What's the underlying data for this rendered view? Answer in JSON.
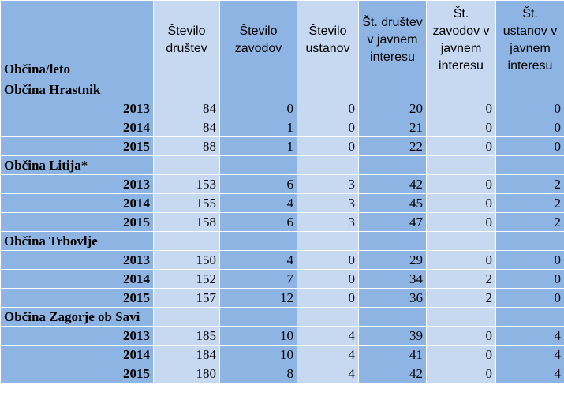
{
  "headers": [
    "Občina/leto",
    "Število društev",
    "Število zavodov",
    "Število ustanov",
    "Št. društev v javnem interesu",
    "Št. zavodov v javnem interesu",
    "Št. ustanov v javnem interesu"
  ],
  "groups": [
    {
      "name": "Občina Hrastnik",
      "rows": [
        {
          "year": "2013",
          "values": [
            "84",
            "0",
            "0",
            "20",
            "0",
            "0"
          ]
        },
        {
          "year": "2014",
          "values": [
            "84",
            "1",
            "0",
            "21",
            "0",
            "0"
          ]
        },
        {
          "year": "2015",
          "values": [
            "88",
            "1",
            "0",
            "22",
            "0",
            "0"
          ]
        }
      ]
    },
    {
      "name": "Občina Litija*",
      "rows": [
        {
          "year": "2013",
          "values": [
            "153",
            "6",
            "3",
            "42",
            "0",
            "2"
          ]
        },
        {
          "year": "2014",
          "values": [
            "155",
            "4",
            "3",
            "45",
            "0",
            "2"
          ]
        },
        {
          "year": "2015",
          "values": [
            "158",
            "6",
            "3",
            "47",
            "0",
            "2"
          ]
        }
      ]
    },
    {
      "name": "Občina Trbovlje",
      "rows": [
        {
          "year": "2013",
          "values": [
            "150",
            "4",
            "0",
            "29",
            "0",
            "0"
          ]
        },
        {
          "year": "2014",
          "values": [
            "152",
            "7",
            "0",
            "34",
            "2",
            "0"
          ]
        },
        {
          "year": "2015",
          "values": [
            "157",
            "12",
            "0",
            "36",
            "2",
            "0"
          ]
        }
      ]
    },
    {
      "name": "Občina Zagorje ob Savi",
      "rows": [
        {
          "year": "2013",
          "values": [
            "185",
            "10",
            "4",
            "39",
            "0",
            "4"
          ]
        },
        {
          "year": "2014",
          "values": [
            "184",
            "10",
            "4",
            "41",
            "0",
            "4"
          ]
        },
        {
          "year": "2015",
          "values": [
            "180",
            "8",
            "4",
            "42",
            "0",
            "4"
          ]
        }
      ]
    }
  ]
}
